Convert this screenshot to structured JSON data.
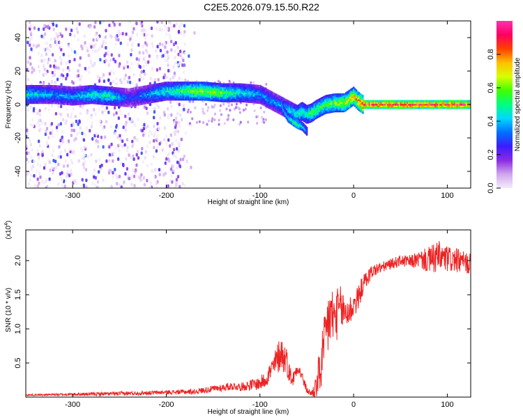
{
  "title": "C2E5.2026.079.15.50.R22",
  "chart_data": [
    {
      "type": "heatmap",
      "title": "C2E5.2026.079.15.50.R22",
      "xlabel": "Height of straight line (km)",
      "ylabel": "Frequency (Hz)",
      "xlim": [
        -350,
        125
      ],
      "ylim": [
        -50,
        50
      ],
      "xticks": [
        -300,
        -200,
        -100,
        0,
        100
      ],
      "xtick_labels": [
        "-300",
        "-200",
        "-100",
        "0",
        "100"
      ],
      "yticks": [
        -40,
        -20,
        0,
        20,
        40
      ],
      "ytick_labels": [
        "-40",
        "-20",
        "0",
        "20",
        "40"
      ],
      "colorbar": {
        "label": "Normalized spectral amplitude",
        "range": [
          0,
          1
        ],
        "ticks": [
          0.0,
          0.2,
          0.4,
          0.6,
          0.8
        ],
        "tick_labels": [
          "0.0",
          "0.2",
          "0.4",
          "0.6",
          "0.8"
        ],
        "colors": [
          "#f5ecfa",
          "#d0a6ee",
          "#8a2be2",
          "#3b1cff",
          "#0070ff",
          "#00d8ff",
          "#00ff80",
          "#40ff00",
          "#d8ff00",
          "#ffc000",
          "#ff4000",
          "#ff0060",
          "#ff30b0"
        ]
      },
      "ridge": {
        "x": [
          -350,
          -320,
          -300,
          -280,
          -260,
          -240,
          -220,
          -200,
          -180,
          -160,
          -140,
          -120,
          -100,
          -90,
          -80,
          -70,
          -60,
          -55,
          -50,
          -45,
          -40,
          -30,
          -20,
          -10,
          -5,
          0,
          5,
          10,
          50,
          100,
          125
        ],
        "y": [
          6,
          6,
          5,
          6,
          5,
          4,
          6,
          8,
          8,
          8,
          7,
          7,
          6,
          3,
          0,
          -3,
          -6,
          -4,
          -6,
          -5,
          -3,
          0,
          1,
          1,
          3,
          5,
          2,
          0,
          0,
          0,
          0
        ],
        "amplitude": [
          0.5,
          0.4,
          0.4,
          0.5,
          0.5,
          0.3,
          0.4,
          0.5,
          0.6,
          0.7,
          0.6,
          0.5,
          0.4,
          0.4,
          0.4,
          0.45,
          0.5,
          0.55,
          0.5,
          0.6,
          0.6,
          0.6,
          0.65,
          0.7,
          0.75,
          0.8,
          0.85,
          0.95,
          0.95,
          0.95,
          0.95
        ]
      },
      "branch": {
        "x": [
          -75,
          -70,
          -65,
          -60,
          -55,
          -50
        ],
        "y": [
          -3,
          -8,
          -10,
          -12,
          -13,
          -16
        ],
        "amplitude": [
          0.4,
          0.45,
          0.5,
          0.55,
          0.45,
          0.35
        ]
      },
      "scatter_region": {
        "xlim": [
          -350,
          -180
        ],
        "ylim": [
          -50,
          50
        ]
      }
    },
    {
      "type": "line",
      "xlabel": "Height of straight line (km)",
      "ylabel": "SNR (10 * v/v)",
      "y_multiplier": "(x10",
      "y_multiplier_exp": "4",
      "y_multiplier_close": ")",
      "xlim": [
        -350,
        125
      ],
      "ylim": [
        0,
        2.45
      ],
      "xticks": [
        -300,
        -200,
        -100,
        0,
        100
      ],
      "xtick_labels": [
        "-300",
        "-200",
        "-100",
        "0",
        "100"
      ],
      "yticks": [
        0.5,
        1.0,
        1.5,
        2.0
      ],
      "ytick_labels": [
        "0.5",
        "1.0",
        "1.5",
        "2.0"
      ],
      "color": "#ee2222",
      "series": [
        {
          "name": "SNR",
          "x": [
            -350,
            -300,
            -250,
            -200,
            -170,
            -150,
            -130,
            -120,
            -110,
            -100,
            -95,
            -90,
            -85,
            -80,
            -77,
            -75,
            -72,
            -70,
            -65,
            -60,
            -55,
            -50,
            -45,
            -40,
            -35,
            -30,
            -28,
            -25,
            -20,
            -15,
            -10,
            -5,
            0,
            5,
            10,
            15,
            20,
            30,
            40,
            50,
            60,
            70,
            80,
            90,
            100,
            110,
            125
          ],
          "y": [
            0.03,
            0.04,
            0.05,
            0.07,
            0.08,
            0.12,
            0.16,
            0.15,
            0.18,
            0.2,
            0.25,
            0.35,
            0.45,
            0.6,
            0.68,
            0.55,
            0.6,
            0.4,
            0.25,
            0.45,
            0.3,
            0.1,
            0.05,
            0.15,
            0.45,
            0.8,
            1.05,
            1.2,
            1.15,
            1.3,
            1.25,
            1.25,
            1.35,
            1.45,
            1.65,
            1.75,
            1.85,
            1.9,
            1.95,
            2.0,
            1.98,
            2.02,
            2.0,
            2.05,
            2.02,
            2.0,
            1.95
          ],
          "noise": [
            0.01,
            0.02,
            0.03,
            0.03,
            0.04,
            0.05,
            0.06,
            0.06,
            0.08,
            0.1,
            0.12,
            0.15,
            0.2,
            0.25,
            0.25,
            0.25,
            0.2,
            0.15,
            0.12,
            0.1,
            0.08,
            0.05,
            0.05,
            0.2,
            0.4,
            0.5,
            0.55,
            0.5,
            0.4,
            0.35,
            0.3,
            0.25,
            0.2,
            0.18,
            0.15,
            0.12,
            0.1,
            0.08,
            0.08,
            0.08,
            0.1,
            0.12,
            0.2,
            0.25,
            0.2,
            0.18,
            0.15
          ]
        }
      ]
    }
  ]
}
